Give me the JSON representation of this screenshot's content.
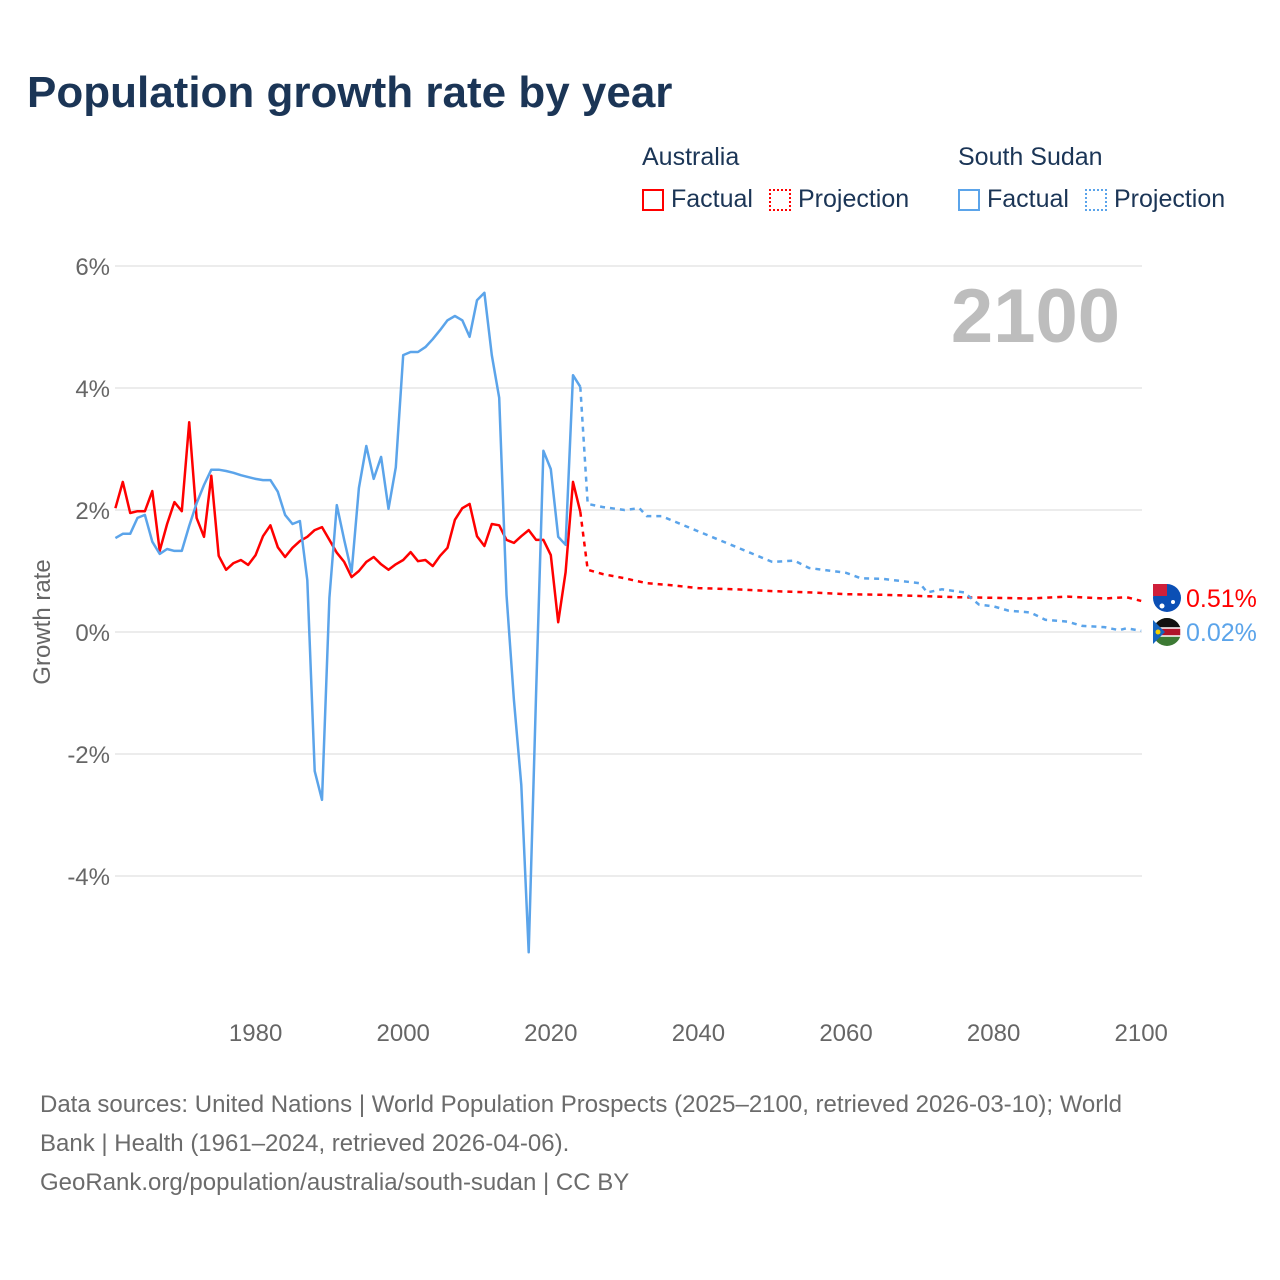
{
  "chart_data": {
    "type": "line",
    "title": "Population growth rate by year",
    "xlabel": "",
    "ylabel": "Growth rate",
    "xlim": [
      1961,
      2100
    ],
    "ylim": [
      -5.5,
      6
    ],
    "grid": true,
    "yticks": [
      6,
      4,
      2,
      0,
      -2,
      -4
    ],
    "ytick_labels": [
      "6%",
      "4%",
      "2%",
      "0%",
      "-2%",
      "-4%"
    ],
    "xticks": [
      1980,
      2000,
      2020,
      2040,
      2060,
      2080,
      2100
    ],
    "xtick_labels": [
      "1980",
      "2000",
      "2020",
      "2040",
      "2060",
      "2080",
      "2100"
    ],
    "year_label": "2100",
    "legend": {
      "placement": "top-right",
      "groups": [
        {
          "name": "Australia",
          "factual": "Factual",
          "projection": "Projection"
        },
        {
          "name": "South Sudan",
          "factual": "Factual",
          "projection": "Projection"
        }
      ]
    },
    "series": [
      {
        "name": "Australia",
        "color": "#ff0000",
        "end_label": "0.51%",
        "factual_start_year": 1961,
        "factual": [
          2.03,
          2.46,
          1.95,
          1.98,
          1.98,
          2.31,
          1.33,
          1.77,
          2.13,
          1.98,
          3.44,
          1.87,
          1.56,
          2.56,
          1.25,
          1.02,
          1.13,
          1.18,
          1.1,
          1.26,
          1.57,
          1.75,
          1.39,
          1.23,
          1.38,
          1.49,
          1.56,
          1.67,
          1.72,
          1.51,
          1.3,
          1.15,
          0.9,
          1.0,
          1.15,
          1.23,
          1.11,
          1.02,
          1.11,
          1.18,
          1.31,
          1.16,
          1.18,
          1.08,
          1.25,
          1.38,
          1.84,
          2.03,
          2.1,
          1.57,
          1.41,
          1.77,
          1.75,
          1.51,
          1.46,
          1.57,
          1.67,
          1.51,
          1.51,
          1.26,
          0.16,
          0.98,
          2.46,
          1.97
        ],
        "projection": [
          [
            2024,
            1.97
          ],
          [
            2025,
            1.02
          ],
          [
            2027,
            0.95
          ],
          [
            2030,
            0.88
          ],
          [
            2033,
            0.8
          ],
          [
            2036,
            0.77
          ],
          [
            2040,
            0.72
          ],
          [
            2045,
            0.7
          ],
          [
            2050,
            0.67
          ],
          [
            2055,
            0.65
          ],
          [
            2060,
            0.62
          ],
          [
            2065,
            0.61
          ],
          [
            2070,
            0.59
          ],
          [
            2075,
            0.57
          ],
          [
            2080,
            0.56
          ],
          [
            2085,
            0.55
          ],
          [
            2090,
            0.58
          ],
          [
            2095,
            0.55
          ],
          [
            2098,
            0.57
          ],
          [
            2100,
            0.51
          ]
        ]
      },
      {
        "name": "South Sudan",
        "color": "#5ba4ea",
        "end_label": "0.02%",
        "factual_start_year": 1961,
        "factual": [
          1.54,
          1.61,
          1.61,
          1.87,
          1.92,
          1.48,
          1.28,
          1.36,
          1.33,
          1.33,
          1.74,
          2.11,
          2.41,
          2.66,
          2.66,
          2.64,
          2.61,
          2.57,
          2.54,
          2.51,
          2.49,
          2.49,
          2.3,
          1.92,
          1.77,
          1.82,
          0.85,
          -2.28,
          -2.75,
          0.56,
          2.08,
          1.51,
          0.98,
          2.36,
          3.05,
          2.51,
          2.87,
          2.02,
          2.7,
          4.54,
          4.59,
          4.59,
          4.67,
          4.8,
          4.95,
          5.11,
          5.18,
          5.11,
          4.84,
          5.44,
          5.56,
          4.54,
          3.84,
          0.61,
          -1.11,
          -2.51,
          -5.25,
          -1.0,
          2.97,
          2.67,
          1.56,
          1.43,
          4.21,
          4.02
        ],
        "projection": [
          [
            2024,
            4.02
          ],
          [
            2025,
            2.1
          ],
          [
            2027,
            2.05
          ],
          [
            2030,
            2.0
          ],
          [
            2032,
            2.03
          ],
          [
            2033,
            1.9
          ],
          [
            2035,
            1.9
          ],
          [
            2040,
            1.65
          ],
          [
            2045,
            1.4
          ],
          [
            2050,
            1.15
          ],
          [
            2053,
            1.17
          ],
          [
            2055,
            1.05
          ],
          [
            2060,
            0.97
          ],
          [
            2062,
            0.88
          ],
          [
            2065,
            0.87
          ],
          [
            2070,
            0.8
          ],
          [
            2071,
            0.65
          ],
          [
            2073,
            0.7
          ],
          [
            2076,
            0.65
          ],
          [
            2078,
            0.45
          ],
          [
            2080,
            0.42
          ],
          [
            2082,
            0.35
          ],
          [
            2085,
            0.32
          ],
          [
            2087,
            0.2
          ],
          [
            2090,
            0.17
          ],
          [
            2092,
            0.1
          ],
          [
            2095,
            0.08
          ],
          [
            2097,
            0.03
          ],
          [
            2098,
            0.06
          ],
          [
            2100,
            0.02
          ]
        ]
      }
    ]
  },
  "footer": {
    "sources_line1": "Data sources: United Nations | World Population Prospects (2025–2100, retrieved 2026-03-10); World",
    "sources_line2": "Bank | Health (1961–2024, retrieved 2026-04-06).",
    "attribution": "GeoRank.org/population/australia/south-sudan | CC BY"
  }
}
